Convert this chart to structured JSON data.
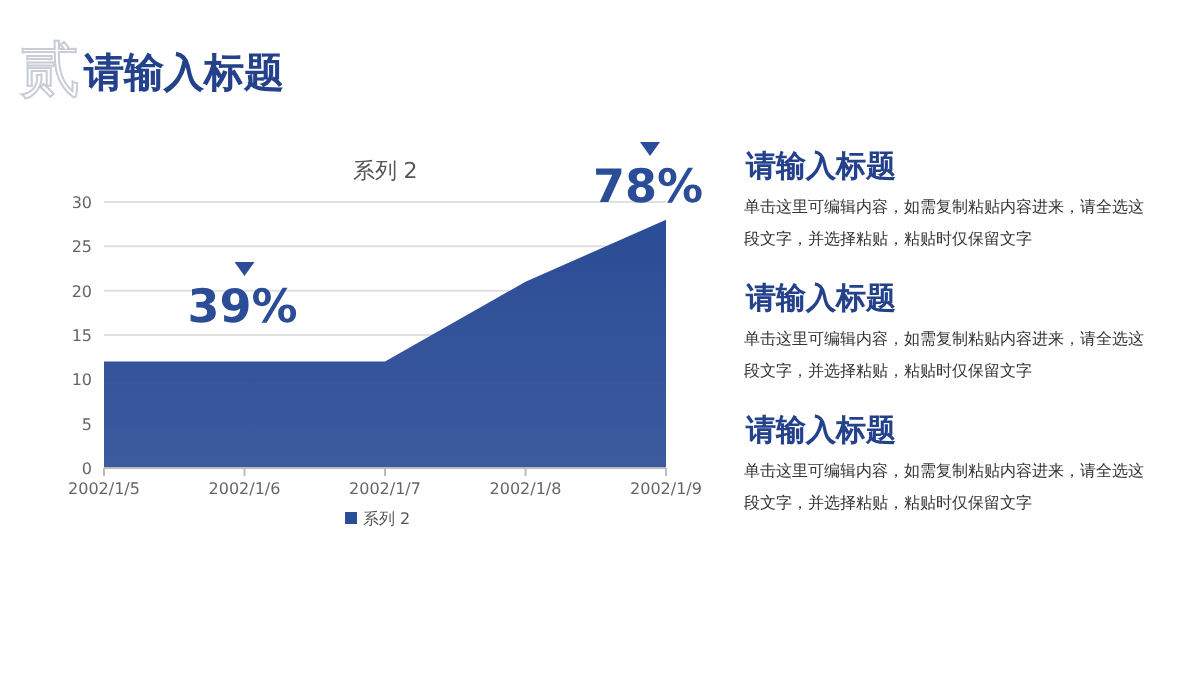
{
  "chart_data": [
    {
      "type": "area",
      "title": "系列 2",
      "categories": [
        "2002/1/5",
        "2002/1/6",
        "2002/1/7",
        "2002/1/8",
        "2002/1/9"
      ],
      "series": [
        {
          "name": "系列 2",
          "color": "#2b4c96",
          "values": [
            12,
            12,
            12,
            21,
            28
          ]
        }
      ],
      "ylim": [
        0,
        30
      ],
      "yticks": [
        0,
        5,
        10,
        15,
        20,
        25,
        30
      ],
      "grid": "y",
      "legend": "bottom",
      "annotations": [
        "39%",
        "78%"
      ]
    },
    {
      "type": "other",
      "title": "请输入标题",
      "annotations": [
        "贰",
        "请输入标题",
        "单击这里可编辑内容，如需复制粘贴内容进来，请全选这段文字，并选择粘贴，粘贴时仅保留文字",
        "请输入标题",
        "单击这里可编辑内容，如需复制粘贴内容进来，请全选这段文字，并选择粘贴，粘贴时仅保留文字",
        "请输入标题",
        "单击这里可编辑内容，如需复制粘贴内容进来，请全选这段文字，并选择粘贴，粘贴时仅保留文字"
      ]
    }
  ]
}
